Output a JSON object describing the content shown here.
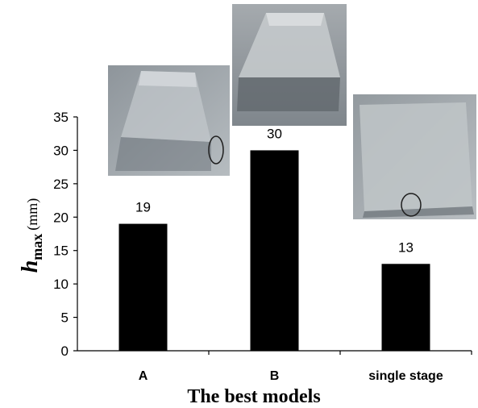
{
  "chart_data": {
    "type": "bar",
    "categories": [
      "A",
      "B",
      "single stage"
    ],
    "values": [
      19,
      30,
      13
    ],
    "data_labels": [
      "19",
      "30",
      "13"
    ],
    "xlabel": "The best models",
    "ylabel": {
      "symbol": "h",
      "subscript": "max",
      "unit": "(mm)"
    },
    "ylim": [
      0,
      35
    ],
    "yticks": [
      0,
      5,
      10,
      15,
      20,
      25,
      30,
      35
    ],
    "bar_color": "#000000",
    "grid": false,
    "legend": "none",
    "photos": [
      "photo-model-a",
      "photo-model-b",
      "photo-single-stage"
    ]
  }
}
